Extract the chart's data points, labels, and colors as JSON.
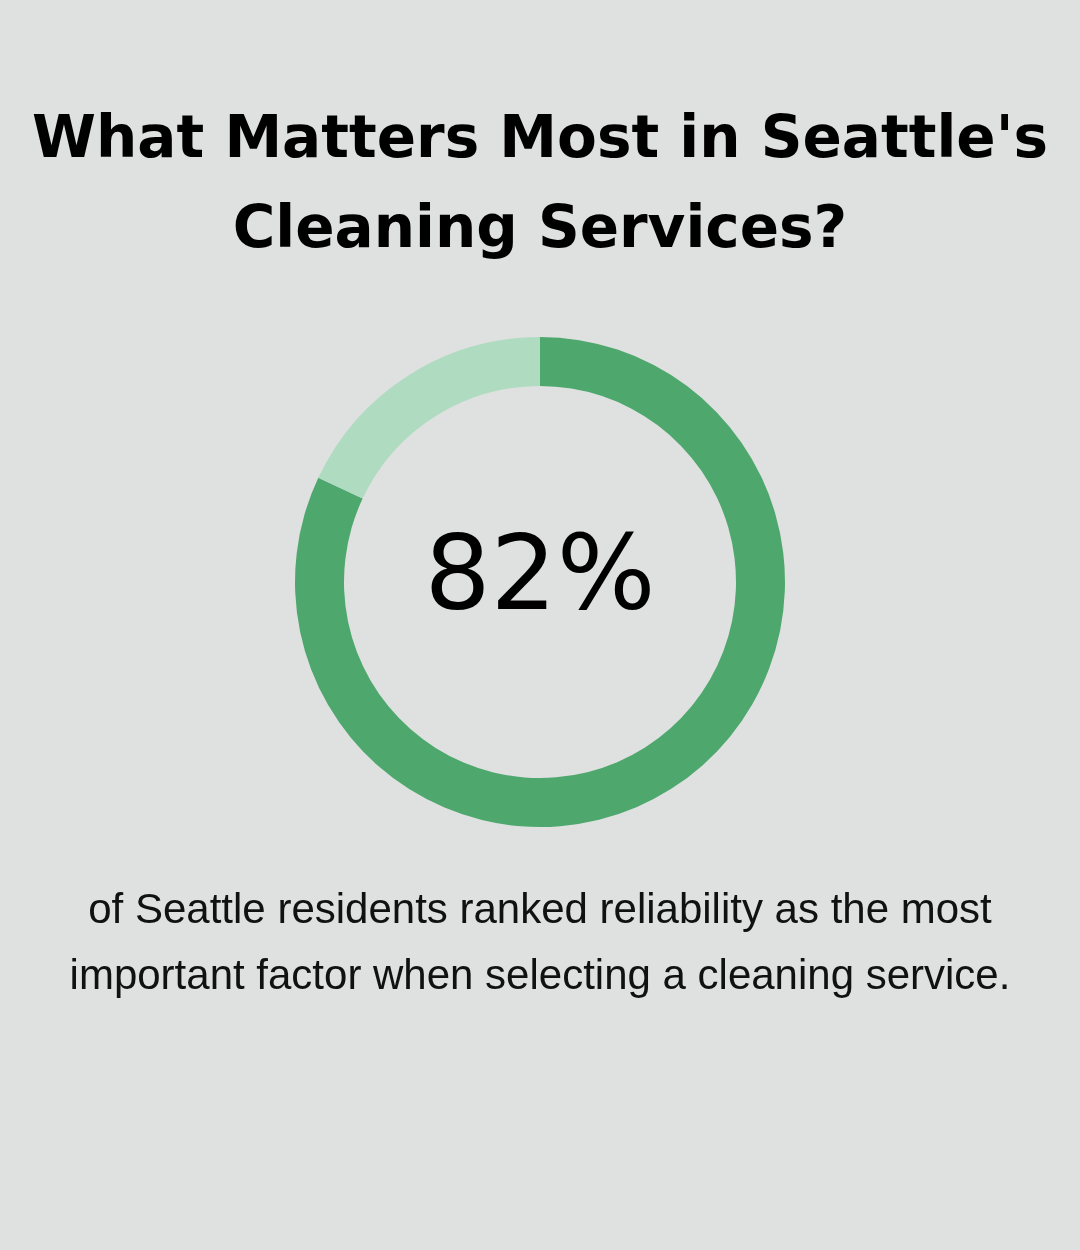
{
  "chart_data": {
    "type": "donut",
    "title": "What Matters Most in Seattle's Cleaning Services?",
    "categories": [
      null,
      null
    ],
    "values": [
      82,
      18
    ],
    "colors": [
      "#4ea86d",
      "#afdbc0"
    ],
    "value_labels": [
      "82%",
      null
    ],
    "annotations": [
      "of Seattle residents ranked reliability as the most important factor when selecting a cleaning service."
    ]
  }
}
